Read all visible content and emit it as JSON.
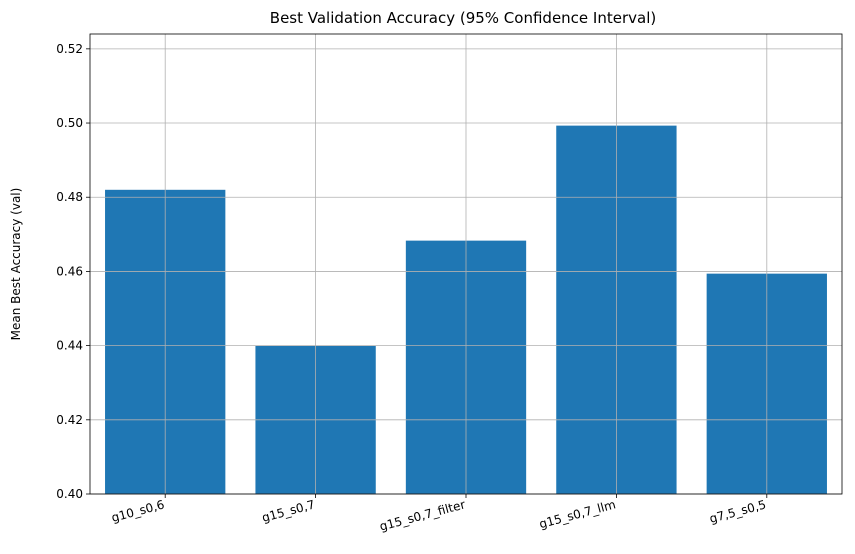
{
  "chart_data": {
    "type": "bar",
    "title": "Best Validation Accuracy (95% Confidence Interval)",
    "xlabel": "",
    "ylabel": "Mean Best Accuracy (val)",
    "categories": [
      "g10_s0,6",
      "g15_s0,7",
      "g15_s0,7_filter",
      "g15_s0,7_llm",
      "g7,5_s0,5"
    ],
    "values": [
      0.482,
      0.44,
      0.4683,
      0.4993,
      0.4594
    ],
    "ylim": [
      0.4,
      0.524
    ],
    "yticks": [
      0.4,
      0.42,
      0.44,
      0.46,
      0.48,
      0.5,
      0.52
    ],
    "ytick_labels": [
      "0.40",
      "0.42",
      "0.44",
      "0.46",
      "0.48",
      "0.50",
      "0.52"
    ],
    "grid": true,
    "bar_color": "#1f77b4",
    "grid_color": "#b0b0b0"
  }
}
